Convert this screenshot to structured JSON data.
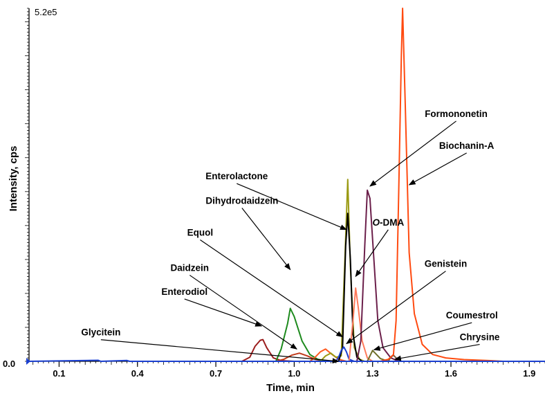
{
  "chart_data": {
    "type": "line",
    "title": "",
    "xlabel": "Time, min",
    "ylabel": "Intensity, cps",
    "xlim": [
      -0.015,
      1.96
    ],
    "ylim": [
      0,
      520000
    ],
    "y_max_label": "5.2e5",
    "y_min_label": "0.0",
    "x_ticks": [
      {
        "value": 0.1,
        "label": "0.1"
      },
      {
        "value": 0.4,
        "label": "0.4"
      },
      {
        "value": 0.7,
        "label": "0.7"
      },
      {
        "value": 1.0,
        "label": "1.0"
      },
      {
        "value": 1.3,
        "label": "1.3"
      },
      {
        "value": 1.6,
        "label": "1.6"
      },
      {
        "value": 1.9,
        "label": "1.9"
      }
    ],
    "grid": false,
    "series": [
      {
        "color": "#9b1d1d",
        "points": [
          [
            0.8,
            0
          ],
          [
            0.83,
            6000
          ],
          [
            0.85,
            22000
          ],
          [
            0.87,
            31000
          ],
          [
            0.88,
            32000
          ],
          [
            0.895,
            20000
          ],
          [
            0.92,
            5000
          ],
          [
            0.95,
            1000
          ],
          [
            1.0,
            0
          ]
        ]
      },
      {
        "color": "#c03a1a",
        "points": [
          [
            0.93,
            0
          ],
          [
            0.96,
            3000
          ],
          [
            0.99,
            9000
          ],
          [
            1.02,
            12000
          ],
          [
            1.05,
            8000
          ],
          [
            1.08,
            3000
          ],
          [
            1.12,
            0
          ]
        ]
      },
      {
        "color": "#1d8a1d",
        "points": [
          [
            0.93,
            0
          ],
          [
            0.95,
            18000
          ],
          [
            0.975,
            56000
          ],
          [
            0.985,
            78000
          ],
          [
            1.0,
            66000
          ],
          [
            1.03,
            30000
          ],
          [
            1.06,
            10000
          ],
          [
            1.09,
            3000
          ],
          [
            1.13,
            0
          ]
        ]
      },
      {
        "color": "#ff5a1f",
        "points": [
          [
            1.06,
            0
          ],
          [
            1.08,
            6000
          ],
          [
            1.1,
            14000
          ],
          [
            1.12,
            18000
          ],
          [
            1.145,
            10000
          ],
          [
            1.17,
            3000
          ],
          [
            1.2,
            0
          ]
        ]
      },
      {
        "color": "#9a9a14",
        "points": [
          [
            1.1,
            0
          ],
          [
            1.12,
            8000
          ],
          [
            1.14,
            12000
          ],
          [
            1.16,
            6000
          ],
          [
            1.18,
            8000
          ],
          [
            1.195,
            160000
          ],
          [
            1.205,
            268000
          ],
          [
            1.215,
            140000
          ],
          [
            1.23,
            20000
          ],
          [
            1.25,
            3000
          ],
          [
            1.27,
            0
          ]
        ]
      },
      {
        "color": "#000000",
        "points": [
          [
            1.17,
            0
          ],
          [
            1.185,
            20000
          ],
          [
            1.197,
            170000
          ],
          [
            1.205,
            218000
          ],
          [
            1.215,
            150000
          ],
          [
            1.225,
            40000
          ],
          [
            1.24,
            6000
          ],
          [
            1.26,
            0
          ]
        ]
      },
      {
        "color": "#1a3fd0",
        "points": [
          [
            1.16,
            0
          ],
          [
            1.17,
            6000
          ],
          [
            1.18,
            16000
          ],
          [
            1.19,
            21000
          ],
          [
            1.2,
            14000
          ],
          [
            1.21,
            3000
          ],
          [
            1.23,
            0
          ]
        ]
      },
      {
        "color": "#ff7a5a",
        "points": [
          [
            1.21,
            0
          ],
          [
            1.225,
            60000
          ],
          [
            1.235,
            108000
          ],
          [
            1.245,
            80000
          ],
          [
            1.26,
            30000
          ],
          [
            1.28,
            5000
          ],
          [
            1.3,
            0
          ]
        ]
      },
      {
        "color": "#6b1f4a",
        "points": [
          [
            1.24,
            0
          ],
          [
            1.255,
            30000
          ],
          [
            1.27,
            170000
          ],
          [
            1.28,
            252000
          ],
          [
            1.29,
            240000
          ],
          [
            1.305,
            150000
          ],
          [
            1.32,
            60000
          ],
          [
            1.34,
            20000
          ],
          [
            1.37,
            5000
          ],
          [
            1.4,
            0
          ]
        ]
      },
      {
        "color": "#6f6f2a",
        "points": [
          [
            1.28,
            0
          ],
          [
            1.29,
            8000
          ],
          [
            1.3,
            16000
          ],
          [
            1.31,
            12000
          ],
          [
            1.33,
            4000
          ],
          [
            1.36,
            0
          ]
        ]
      },
      {
        "color": "#7d5a3a",
        "points": [
          [
            1.36,
            0
          ],
          [
            1.37,
            6000
          ],
          [
            1.38,
            9000
          ],
          [
            1.39,
            5000
          ],
          [
            1.41,
            0
          ]
        ]
      },
      {
        "color": "#ff4a10",
        "points": [
          [
            1.33,
            0
          ],
          [
            1.36,
            3000
          ],
          [
            1.38,
            10000
          ],
          [
            1.39,
            60000
          ],
          [
            1.4,
            250000
          ],
          [
            1.41,
            450000
          ],
          [
            1.415,
            520000
          ],
          [
            1.425,
            380000
          ],
          [
            1.44,
            160000
          ],
          [
            1.46,
            70000
          ],
          [
            1.49,
            25000
          ],
          [
            1.53,
            10000
          ],
          [
            1.58,
            5000
          ],
          [
            1.65,
            2500
          ],
          [
            1.75,
            1000
          ],
          [
            1.8,
            0
          ]
        ]
      },
      {
        "color": "#1a3fd0",
        "points": [
          [
            -0.015,
            0
          ],
          [
            0.25,
            1500
          ],
          [
            0.26,
            0
          ],
          [
            0.36,
            1200
          ],
          [
            0.37,
            0
          ],
          [
            1.96,
            0
          ]
        ]
      }
    ],
    "annotations": [
      {
        "text": "Formononetin",
        "x": 1.62,
        "y": 360000,
        "tip_x": 1.29,
        "tip_y": 258000
      },
      {
        "text": "Biochanin-A",
        "x": 1.66,
        "y": 313000,
        "tip_x": 1.44,
        "tip_y": 260000
      },
      {
        "text": "Enterolactone",
        "x": 0.78,
        "y": 268000,
        "tip_x": 1.2,
        "tip_y": 194000
      },
      {
        "text": "Dihydrodaidzein",
        "x": 0.8,
        "y": 232000,
        "tip_x": 0.985,
        "tip_y": 135000
      },
      {
        "text": "O-DMA",
        "x": 1.36,
        "y": 200000,
        "tip_x": 1.235,
        "tip_y": 125000
      },
      {
        "text": "Equol",
        "x": 0.64,
        "y": 185000,
        "tip_x": 1.185,
        "tip_y": 36000
      },
      {
        "text": "Daidzein",
        "x": 0.6,
        "y": 133000,
        "tip_x": 1.01,
        "tip_y": 18000
      },
      {
        "text": "Genistein",
        "x": 1.58,
        "y": 139000,
        "tip_x": 1.2,
        "tip_y": 26000
      },
      {
        "text": "Enterodiol",
        "x": 0.58,
        "y": 98000,
        "tip_x": 0.875,
        "tip_y": 52000
      },
      {
        "text": "Coumestrol",
        "x": 1.68,
        "y": 63000,
        "tip_x": 1.305,
        "tip_y": 17000
      },
      {
        "text": "Glycitein",
        "x": 0.26,
        "y": 38000,
        "tip_x": 1.17,
        "tip_y": 0
      },
      {
        "text": "Chrysine",
        "x": 1.71,
        "y": 31000,
        "tip_x": 1.385,
        "tip_y": 3000
      }
    ]
  }
}
